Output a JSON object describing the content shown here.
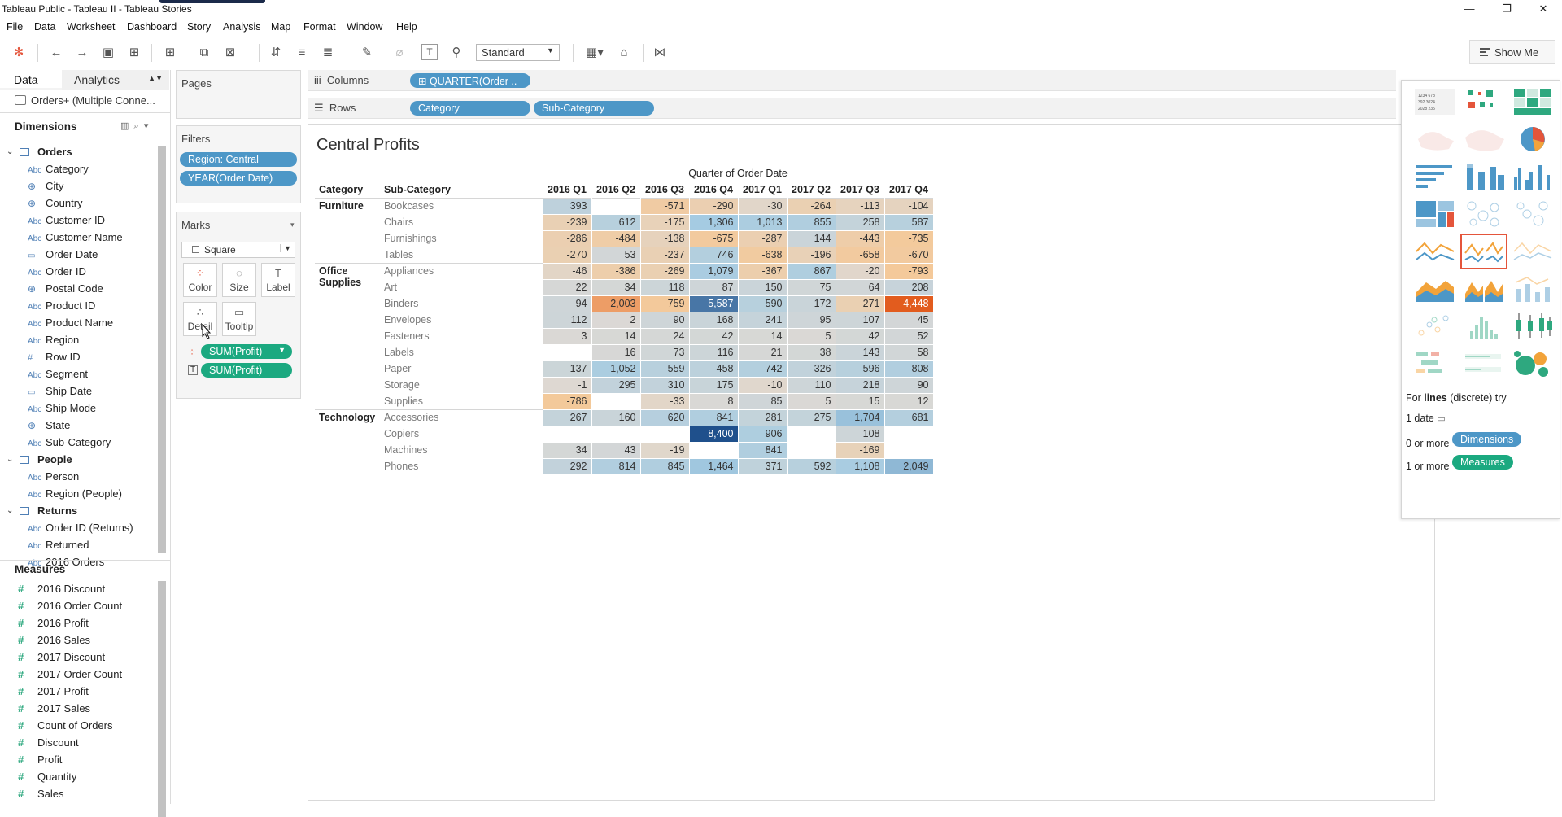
{
  "window": {
    "title": "Tableau Public - Tableau II - Tableau Stories"
  },
  "menu": [
    "File",
    "Data",
    "Worksheet",
    "Dashboard",
    "Story",
    "Analysis",
    "Map",
    "Format",
    "Window",
    "Help"
  ],
  "toolbar": {
    "fit_mode": "Standard",
    "show_me_label": "Show Me"
  },
  "data_pane": {
    "tab_data": "Data",
    "tab_analytics": "Analytics",
    "datasource": "Orders+ (Multiple Conne...",
    "dimensions_label": "Dimensions",
    "measures_label": "Measures",
    "tree": [
      {
        "label": "Orders",
        "type": "group"
      },
      {
        "label": "Category",
        "type": "abc"
      },
      {
        "label": "City",
        "type": "geo"
      },
      {
        "label": "Country",
        "type": "geo"
      },
      {
        "label": "Customer ID",
        "type": "abc"
      },
      {
        "label": "Customer Name",
        "type": "abc"
      },
      {
        "label": "Order Date",
        "type": "date"
      },
      {
        "label": "Order ID",
        "type": "abc"
      },
      {
        "label": "Postal Code",
        "type": "geo"
      },
      {
        "label": "Product ID",
        "type": "abc"
      },
      {
        "label": "Product Name",
        "type": "abc"
      },
      {
        "label": "Region",
        "type": "abc"
      },
      {
        "label": "Row ID",
        "type": "num"
      },
      {
        "label": "Segment",
        "type": "abc"
      },
      {
        "label": "Ship Date",
        "type": "date"
      },
      {
        "label": "Ship Mode",
        "type": "abc"
      },
      {
        "label": "State",
        "type": "geo"
      },
      {
        "label": "Sub-Category",
        "type": "abc"
      },
      {
        "label": "People",
        "type": "group"
      },
      {
        "label": "Person",
        "type": "abc"
      },
      {
        "label": "Region (People)",
        "type": "abc"
      },
      {
        "label": "Returns",
        "type": "group"
      },
      {
        "label": "Order ID (Returns)",
        "type": "abc"
      },
      {
        "label": "Returned",
        "type": "abc"
      },
      {
        "label": "2016 Orders",
        "type": "abc"
      }
    ],
    "measures": [
      "2016 Discount",
      "2016 Order Count",
      "2016 Profit",
      "2016 Sales",
      "2017 Discount",
      "2017 Order Count",
      "2017 Profit",
      "2017 Sales",
      "Count of Orders",
      "Discount",
      "Profit",
      "Quantity",
      "Sales"
    ],
    "type_glyphs": {
      "abc": "Abc",
      "geo": "⊕",
      "date": "▭",
      "num": "#"
    }
  },
  "pages": {
    "title": "Pages"
  },
  "filters": {
    "title": "Filters",
    "items": [
      "Region: Central",
      "YEAR(Order Date)"
    ]
  },
  "marks": {
    "title": "Marks",
    "mark_type": "Square",
    "buttons": [
      "Color",
      "Size",
      "Label",
      "Detail",
      "Tooltip"
    ],
    "pills": [
      "SUM(Profit)",
      "SUM(Profit)"
    ]
  },
  "shelves": {
    "columns_label": "Columns",
    "rows_label": "Rows",
    "columns_pills": [
      "QUARTER(Order .."
    ],
    "rows_pills": [
      "Category",
      "Sub-Category"
    ]
  },
  "sheet": {
    "title": "Central Profits",
    "column_group_header": "Quarter of Order Date",
    "row_headers": [
      "Category",
      "Sub-Category"
    ],
    "quarters": [
      "2016 Q1",
      "2016 Q2",
      "2016 Q3",
      "2016 Q4",
      "2017 Q1",
      "2017 Q2",
      "2017 Q3",
      "2017 Q4"
    ],
    "groups": [
      {
        "category": "Furniture",
        "rows": [
          {
            "sub": "Bookcases",
            "values": [
              "393",
              "",
              "-571",
              "-290",
              "-30",
              "-264",
              "-113",
              "-104"
            ]
          },
          {
            "sub": "Chairs",
            "values": [
              "-239",
              "612",
              "-175",
              "1,306",
              "1,013",
              "855",
              "258",
              "587"
            ]
          },
          {
            "sub": "Furnishings",
            "values": [
              "-286",
              "-484",
              "-138",
              "-675",
              "-287",
              "144",
              "-443",
              "-735"
            ]
          },
          {
            "sub": "Tables",
            "values": [
              "-270",
              "53",
              "-237",
              "746",
              "-638",
              "-196",
              "-658",
              "-670"
            ]
          }
        ]
      },
      {
        "category": "Office Supplies",
        "rows": [
          {
            "sub": "Appliances",
            "values": [
              "-46",
              "-386",
              "-269",
              "1,079",
              "-367",
              "867",
              "-20",
              "-793"
            ]
          },
          {
            "sub": "Art",
            "values": [
              "22",
              "34",
              "118",
              "87",
              "150",
              "75",
              "64",
              "208"
            ]
          },
          {
            "sub": "Binders",
            "values": [
              "94",
              "-2,003",
              "-759",
              "5,587",
              "590",
              "172",
              "-271",
              "-4,448"
            ]
          },
          {
            "sub": "Envelopes",
            "values": [
              "112",
              "2",
              "90",
              "168",
              "241",
              "95",
              "107",
              "45"
            ]
          },
          {
            "sub": "Fasteners",
            "values": [
              "3",
              "14",
              "24",
              "42",
              "14",
              "5",
              "42",
              "52"
            ]
          },
          {
            "sub": "Labels",
            "values": [
              "",
              "16",
              "73",
              "116",
              "21",
              "38",
              "143",
              "58"
            ]
          },
          {
            "sub": "Paper",
            "values": [
              "137",
              "1,052",
              "559",
              "458",
              "742",
              "326",
              "596",
              "808"
            ]
          },
          {
            "sub": "Storage",
            "values": [
              "-1",
              "295",
              "310",
              "175",
              "-10",
              "110",
              "218",
              "90"
            ]
          },
          {
            "sub": "Supplies",
            "values": [
              "-786",
              "",
              "-33",
              "8",
              "85",
              "5",
              "15",
              "12"
            ]
          }
        ]
      },
      {
        "category": "Technology",
        "rows": [
          {
            "sub": "Accessories",
            "values": [
              "267",
              "160",
              "620",
              "841",
              "281",
              "275",
              "1,704",
              "681"
            ]
          },
          {
            "sub": "Copiers",
            "values": [
              "",
              "",
              "",
              "8,400",
              "906",
              "",
              "108",
              ""
            ]
          },
          {
            "sub": "Machines",
            "values": [
              "34",
              "43",
              "-19",
              "",
              "841",
              "",
              "-169",
              ""
            ]
          },
          {
            "sub": "Phones",
            "values": [
              "292",
              "814",
              "845",
              "1,464",
              "371",
              "592",
              "1,108",
              "2,049"
            ]
          }
        ]
      }
    ]
  },
  "show_me": {
    "hint_prefix": "For",
    "hint_bold": "lines",
    "hint_suffix": "(discrete) try",
    "req1": "1 date",
    "req2_prefix": "0 or more",
    "req2_pill": "Dimensions",
    "req3_prefix": "1 or more",
    "req3_pill": "Measures"
  }
}
